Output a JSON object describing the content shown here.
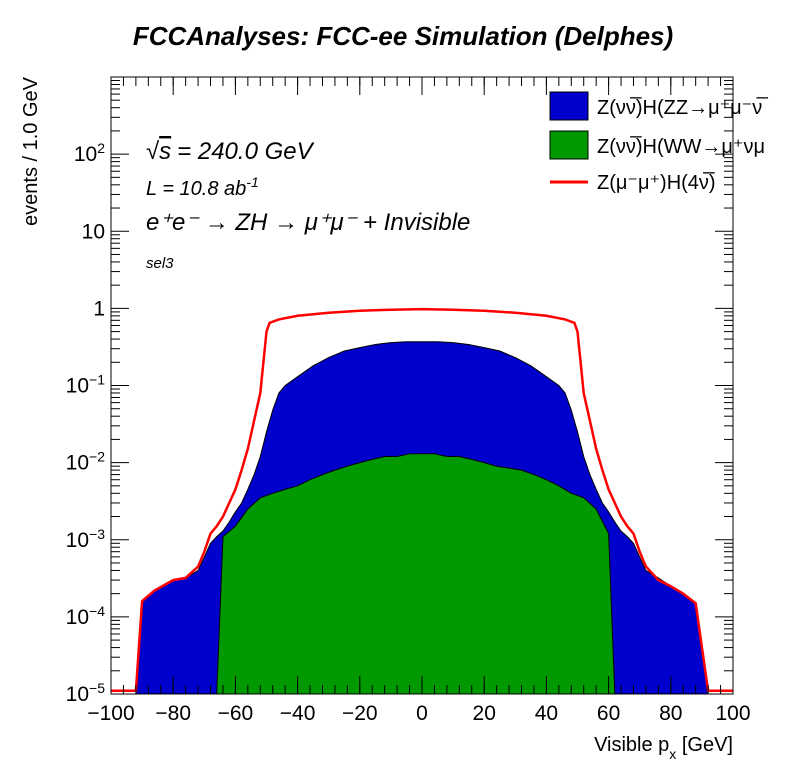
{
  "chart_data": {
    "type": "histogram",
    "title": "FCCAnalyses: FCC-ee Simulation (Delphes)",
    "xlabel": "Visible p_x [GeV]",
    "ylabel": "events / 1.0 GeV",
    "xlim": [
      -100,
      100
    ],
    "ylim": [
      1e-05,
      1000
    ],
    "yscale": "log",
    "bin_width": 1.0,
    "x_ticks": [
      "−100",
      "−80",
      "−60",
      "−40",
      "−20",
      "0",
      "20",
      "40",
      "60",
      "80",
      "100"
    ],
    "y_ticks": [
      {
        "base": "10",
        "exp": "−5",
        "value": 1e-05
      },
      {
        "base": "10",
        "exp": "−4",
        "value": 0.0001
      },
      {
        "base": "10",
        "exp": "−3",
        "value": 0.001
      },
      {
        "base": "10",
        "exp": "−2",
        "value": 0.01
      },
      {
        "base": "10",
        "exp": "−1",
        "value": 0.1
      },
      {
        "base": "1",
        "exp": "",
        "value": 1
      },
      {
        "base": "10",
        "exp": "",
        "value": 10
      },
      {
        "base": "10",
        "exp": "2",
        "value": 100
      }
    ],
    "annotations": {
      "sqrt_s": "= 240.0 GeV",
      "sqrt_symbol": "√",
      "sqrt_var": "s",
      "lumi_prefix": "L = 10.8 ab",
      "lumi_exp": "-1",
      "process": "e⁺e⁻ → ZH → μ⁺μ⁻ + Invisible",
      "selection": "sel3"
    },
    "series": [
      {
        "name": "Z(νν̅)H(ZZ→μ⁺μ⁻ν̅",
        "style": "stacked-fill",
        "color": "#0000cc",
        "points": [
          [
            -92,
            1e-05
          ],
          [
            -90,
            0.00016
          ],
          [
            -86,
            0.00022
          ],
          [
            -80,
            0.0003
          ],
          [
            -76,
            0.00032
          ],
          [
            -72,
            0.0004
          ],
          [
            -70,
            0.0006
          ],
          [
            -68,
            0.0009
          ],
          [
            -66,
            0.0011
          ],
          [
            -64,
            0.0013
          ],
          [
            -62,
            0.0017
          ],
          [
            -60,
            0.0023
          ],
          [
            -58,
            0.003
          ],
          [
            -56,
            0.0045
          ],
          [
            -54,
            0.007
          ],
          [
            -52,
            0.012
          ],
          [
            -50,
            0.025
          ],
          [
            -48,
            0.048
          ],
          [
            -46,
            0.08
          ],
          [
            -44,
            0.1
          ],
          [
            -40,
            0.13
          ],
          [
            -35,
            0.18
          ],
          [
            -30,
            0.23
          ],
          [
            -25,
            0.28
          ],
          [
            -20,
            0.31
          ],
          [
            -15,
            0.34
          ],
          [
            -10,
            0.36
          ],
          [
            -5,
            0.37
          ],
          [
            0,
            0.37
          ],
          [
            5,
            0.37
          ],
          [
            10,
            0.36
          ],
          [
            15,
            0.34
          ],
          [
            20,
            0.31
          ],
          [
            25,
            0.28
          ],
          [
            30,
            0.23
          ],
          [
            35,
            0.18
          ],
          [
            40,
            0.13
          ],
          [
            44,
            0.1
          ],
          [
            46,
            0.08
          ],
          [
            48,
            0.048
          ],
          [
            50,
            0.025
          ],
          [
            52,
            0.012
          ],
          [
            54,
            0.007
          ],
          [
            56,
            0.0045
          ],
          [
            58,
            0.003
          ],
          [
            60,
            0.0023
          ],
          [
            62,
            0.0017
          ],
          [
            64,
            0.0013
          ],
          [
            66,
            0.0011
          ],
          [
            68,
            0.0009
          ],
          [
            70,
            0.0006
          ],
          [
            72,
            0.0004
          ],
          [
            76,
            0.00032
          ],
          [
            80,
            0.00025
          ],
          [
            84,
            0.0002
          ],
          [
            88,
            0.00015
          ],
          [
            92,
            1e-05
          ]
        ]
      },
      {
        "name": "Z(νν̅)H(WW→μ⁺νμ",
        "style": "stacked-fill",
        "color": "#009900",
        "points": [
          [
            -66,
            1e-05
          ],
          [
            -64,
            0.0011
          ],
          [
            -60,
            0.0015
          ],
          [
            -56,
            0.0025
          ],
          [
            -52,
            0.0035
          ],
          [
            -48,
            0.004
          ],
          [
            -44,
            0.0045
          ],
          [
            -40,
            0.005
          ],
          [
            -36,
            0.006
          ],
          [
            -32,
            0.007
          ],
          [
            -28,
            0.008
          ],
          [
            -24,
            0.009
          ],
          [
            -20,
            0.01
          ],
          [
            -16,
            0.011
          ],
          [
            -12,
            0.012
          ],
          [
            -8,
            0.012
          ],
          [
            -4,
            0.013
          ],
          [
            0,
            0.013
          ],
          [
            4,
            0.013
          ],
          [
            8,
            0.012
          ],
          [
            12,
            0.012
          ],
          [
            16,
            0.011
          ],
          [
            20,
            0.01
          ],
          [
            24,
            0.009
          ],
          [
            28,
            0.0085
          ],
          [
            32,
            0.008
          ],
          [
            36,
            0.007
          ],
          [
            40,
            0.006
          ],
          [
            44,
            0.005
          ],
          [
            48,
            0.004
          ],
          [
            52,
            0.0035
          ],
          [
            56,
            0.0025
          ],
          [
            60,
            0.0012
          ],
          [
            62,
            1e-05
          ]
        ]
      },
      {
        "name": "Z(μ⁻μ⁺)H(4ν̅)",
        "style": "line",
        "color": "#ff0000",
        "points": [
          [
            -100,
            1.1e-05
          ],
          [
            -92,
            1.1e-05
          ],
          [
            -90,
            0.00016
          ],
          [
            -86,
            0.00022
          ],
          [
            -80,
            0.0003
          ],
          [
            -76,
            0.00032
          ],
          [
            -72,
            0.00045
          ],
          [
            -70,
            0.0007
          ],
          [
            -68,
            0.0012
          ],
          [
            -66,
            0.0015
          ],
          [
            -64,
            0.002
          ],
          [
            -62,
            0.003
          ],
          [
            -60,
            0.0045
          ],
          [
            -58,
            0.008
          ],
          [
            -56,
            0.015
          ],
          [
            -54,
            0.035
          ],
          [
            -52,
            0.08
          ],
          [
            -51,
            0.2
          ],
          [
            -50,
            0.5
          ],
          [
            -49,
            0.65
          ],
          [
            -46,
            0.72
          ],
          [
            -40,
            0.8
          ],
          [
            -30,
            0.88
          ],
          [
            -20,
            0.93
          ],
          [
            -10,
            0.96
          ],
          [
            0,
            0.98
          ],
          [
            10,
            0.96
          ],
          [
            20,
            0.93
          ],
          [
            30,
            0.88
          ],
          [
            40,
            0.8
          ],
          [
            46,
            0.72
          ],
          [
            49,
            0.65
          ],
          [
            50,
            0.5
          ],
          [
            51,
            0.2
          ],
          [
            52,
            0.08
          ],
          [
            54,
            0.035
          ],
          [
            56,
            0.015
          ],
          [
            58,
            0.008
          ],
          [
            60,
            0.0045
          ],
          [
            62,
            0.003
          ],
          [
            64,
            0.002
          ],
          [
            66,
            0.0015
          ],
          [
            68,
            0.0012
          ],
          [
            70,
            0.0007
          ],
          [
            72,
            0.00045
          ],
          [
            76,
            0.0003
          ],
          [
            80,
            0.00025
          ],
          [
            84,
            0.0002
          ],
          [
            88,
            0.00015
          ],
          [
            92,
            1.1e-05
          ],
          [
            100,
            1.1e-05
          ]
        ]
      }
    ]
  }
}
